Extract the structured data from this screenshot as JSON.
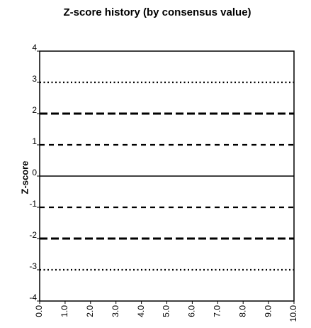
{
  "chart_data": {
    "type": "line",
    "title": "Z-score history (by consensus value)",
    "ylabel": "Z-score",
    "xlim": [
      0,
      10
    ],
    "xticks": [
      {
        "value": 0,
        "label": "0.0"
      },
      {
        "value": 1,
        "label": "1.0"
      },
      {
        "value": 2,
        "label": "2.0"
      },
      {
        "value": 3,
        "label": "3.0"
      },
      {
        "value": 4,
        "label": "4.0"
      },
      {
        "value": 5,
        "label": "5.0"
      },
      {
        "value": 6,
        "label": "6.0"
      },
      {
        "value": 7,
        "label": "7.0"
      },
      {
        "value": 8,
        "label": "8.0"
      },
      {
        "value": 9,
        "label": "9.0"
      },
      {
        "value": 10,
        "label": "10.0"
      }
    ],
    "ylim": [
      -4,
      4
    ],
    "yticks": [
      -4,
      -3,
      -2,
      -1,
      0,
      1,
      2,
      3,
      4
    ],
    "reference_lines": [
      {
        "value": 3,
        "style": "dotted"
      },
      {
        "value": 2,
        "style": "dashed-thick"
      },
      {
        "value": 1,
        "style": "dashed"
      },
      {
        "value": 0,
        "style": "solid"
      },
      {
        "value": -1,
        "style": "dashed"
      },
      {
        "value": -2,
        "style": "dashed-thick"
      },
      {
        "value": -3,
        "style": "dotted"
      }
    ]
  }
}
